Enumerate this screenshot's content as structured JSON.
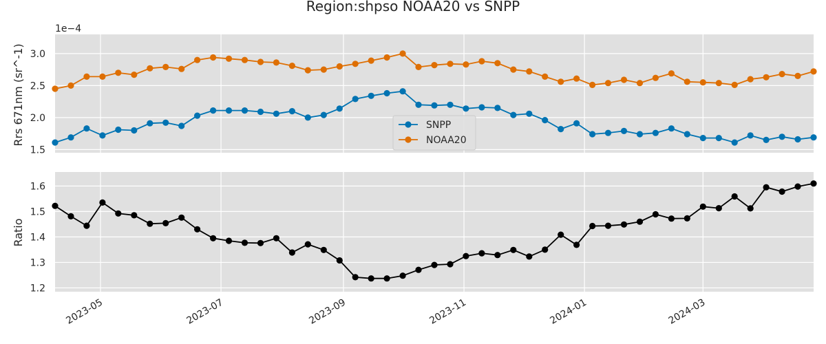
{
  "chart_data": {
    "type": "line",
    "title": "Region:shpso NOAA20 vs SNPP",
    "x_dates": [
      "2023-04-08",
      "2023-04-16",
      "2023-04-24",
      "2023-05-02",
      "2023-05-10",
      "2023-05-18",
      "2023-05-26",
      "2023-06-03",
      "2023-06-11",
      "2023-06-19",
      "2023-06-27",
      "2023-07-05",
      "2023-07-13",
      "2023-07-21",
      "2023-07-29",
      "2023-08-06",
      "2023-08-14",
      "2023-08-22",
      "2023-08-30",
      "2023-09-07",
      "2023-09-15",
      "2023-09-23",
      "2023-10-01",
      "2023-10-09",
      "2023-10-17",
      "2023-10-25",
      "2023-11-02",
      "2023-11-10",
      "2023-11-18",
      "2023-11-26",
      "2023-12-04",
      "2023-12-12",
      "2023-12-20",
      "2023-12-28",
      "2024-01-05",
      "2024-01-13",
      "2024-01-21",
      "2024-01-29",
      "2024-02-06",
      "2024-02-14",
      "2024-02-22",
      "2024-03-01",
      "2024-03-09",
      "2024-03-17",
      "2024-03-25",
      "2024-04-02",
      "2024-04-10",
      "2024-04-18",
      "2024-04-26"
    ],
    "top": {
      "ylabel": "Rrs 671nm (sr^-1)",
      "offset_text": "1e−4",
      "ylim": [
        1.45,
        3.3
      ],
      "yticks": [
        "1.5",
        "2.0",
        "2.5",
        "3.0"
      ],
      "legend": "center",
      "series": [
        {
          "name": "SNPP",
          "color": "#0173b2",
          "values": [
            1.61,
            1.69,
            1.83,
            1.72,
            1.81,
            1.8,
            1.91,
            1.92,
            1.87,
            2.03,
            2.11,
            2.11,
            2.11,
            2.09,
            2.06,
            2.1,
            2.0,
            2.04,
            2.14,
            2.29,
            2.34,
            2.38,
            2.41,
            2.2,
            2.19,
            2.2,
            2.14,
            2.16,
            2.15,
            2.04,
            2.06,
            1.96,
            1.82,
            1.91,
            1.74,
            1.76,
            1.79,
            1.74,
            1.76,
            1.83,
            1.74,
            1.68,
            1.68,
            1.61,
            1.72,
            1.65,
            1.7,
            1.66,
            1.69
          ]
        },
        {
          "name": "NOAA20",
          "color": "#de6f04",
          "values": [
            2.45,
            2.5,
            2.64,
            2.64,
            2.7,
            2.67,
            2.77,
            2.79,
            2.76,
            2.9,
            2.94,
            2.92,
            2.9,
            2.87,
            2.86,
            2.81,
            2.74,
            2.75,
            2.8,
            2.84,
            2.89,
            2.94,
            3.0,
            2.79,
            2.82,
            2.84,
            2.83,
            2.88,
            2.85,
            2.75,
            2.72,
            2.64,
            2.56,
            2.61,
            2.51,
            2.54,
            2.59,
            2.54,
            2.62,
            2.69,
            2.56,
            2.55,
            2.54,
            2.51,
            2.6,
            2.63,
            2.68,
            2.65,
            2.72
          ]
        }
      ]
    },
    "bottom": {
      "ylabel": "Ratio",
      "ylim": [
        1.185,
        1.655
      ],
      "yticks": [
        "1.2",
        "1.3",
        "1.4",
        "1.5",
        "1.6"
      ],
      "series": [
        {
          "color": "#000000",
          "values": [
            1.522,
            1.481,
            1.444,
            1.535,
            1.492,
            1.485,
            1.452,
            1.454,
            1.476,
            1.43,
            1.395,
            1.385,
            1.377,
            1.376,
            1.395,
            1.339,
            1.371,
            1.349,
            1.308,
            1.242,
            1.237,
            1.237,
            1.248,
            1.271,
            1.29,
            1.293,
            1.325,
            1.336,
            1.329,
            1.349,
            1.323,
            1.35,
            1.409,
            1.369,
            1.443,
            1.444,
            1.449,
            1.46,
            1.489,
            1.472,
            1.473,
            1.519,
            1.513,
            1.559,
            1.512,
            1.595,
            1.578,
            1.598,
            1.61
          ]
        }
      ]
    },
    "x_ticks": [
      {
        "date": "2023-05-01",
        "label": "2023-05"
      },
      {
        "date": "2023-07-01",
        "label": "2023-07"
      },
      {
        "date": "2023-09-01",
        "label": "2023-09"
      },
      {
        "date": "2023-11-01",
        "label": "2023-11"
      },
      {
        "date": "2024-01-01",
        "label": "2024-01"
      },
      {
        "date": "2024-03-01",
        "label": "2024-03"
      }
    ],
    "xlim": [
      "2023-04-08",
      "2024-04-26"
    ],
    "grid": true,
    "background_color": "#e0e0e0",
    "grid_color": "#ffffff"
  }
}
